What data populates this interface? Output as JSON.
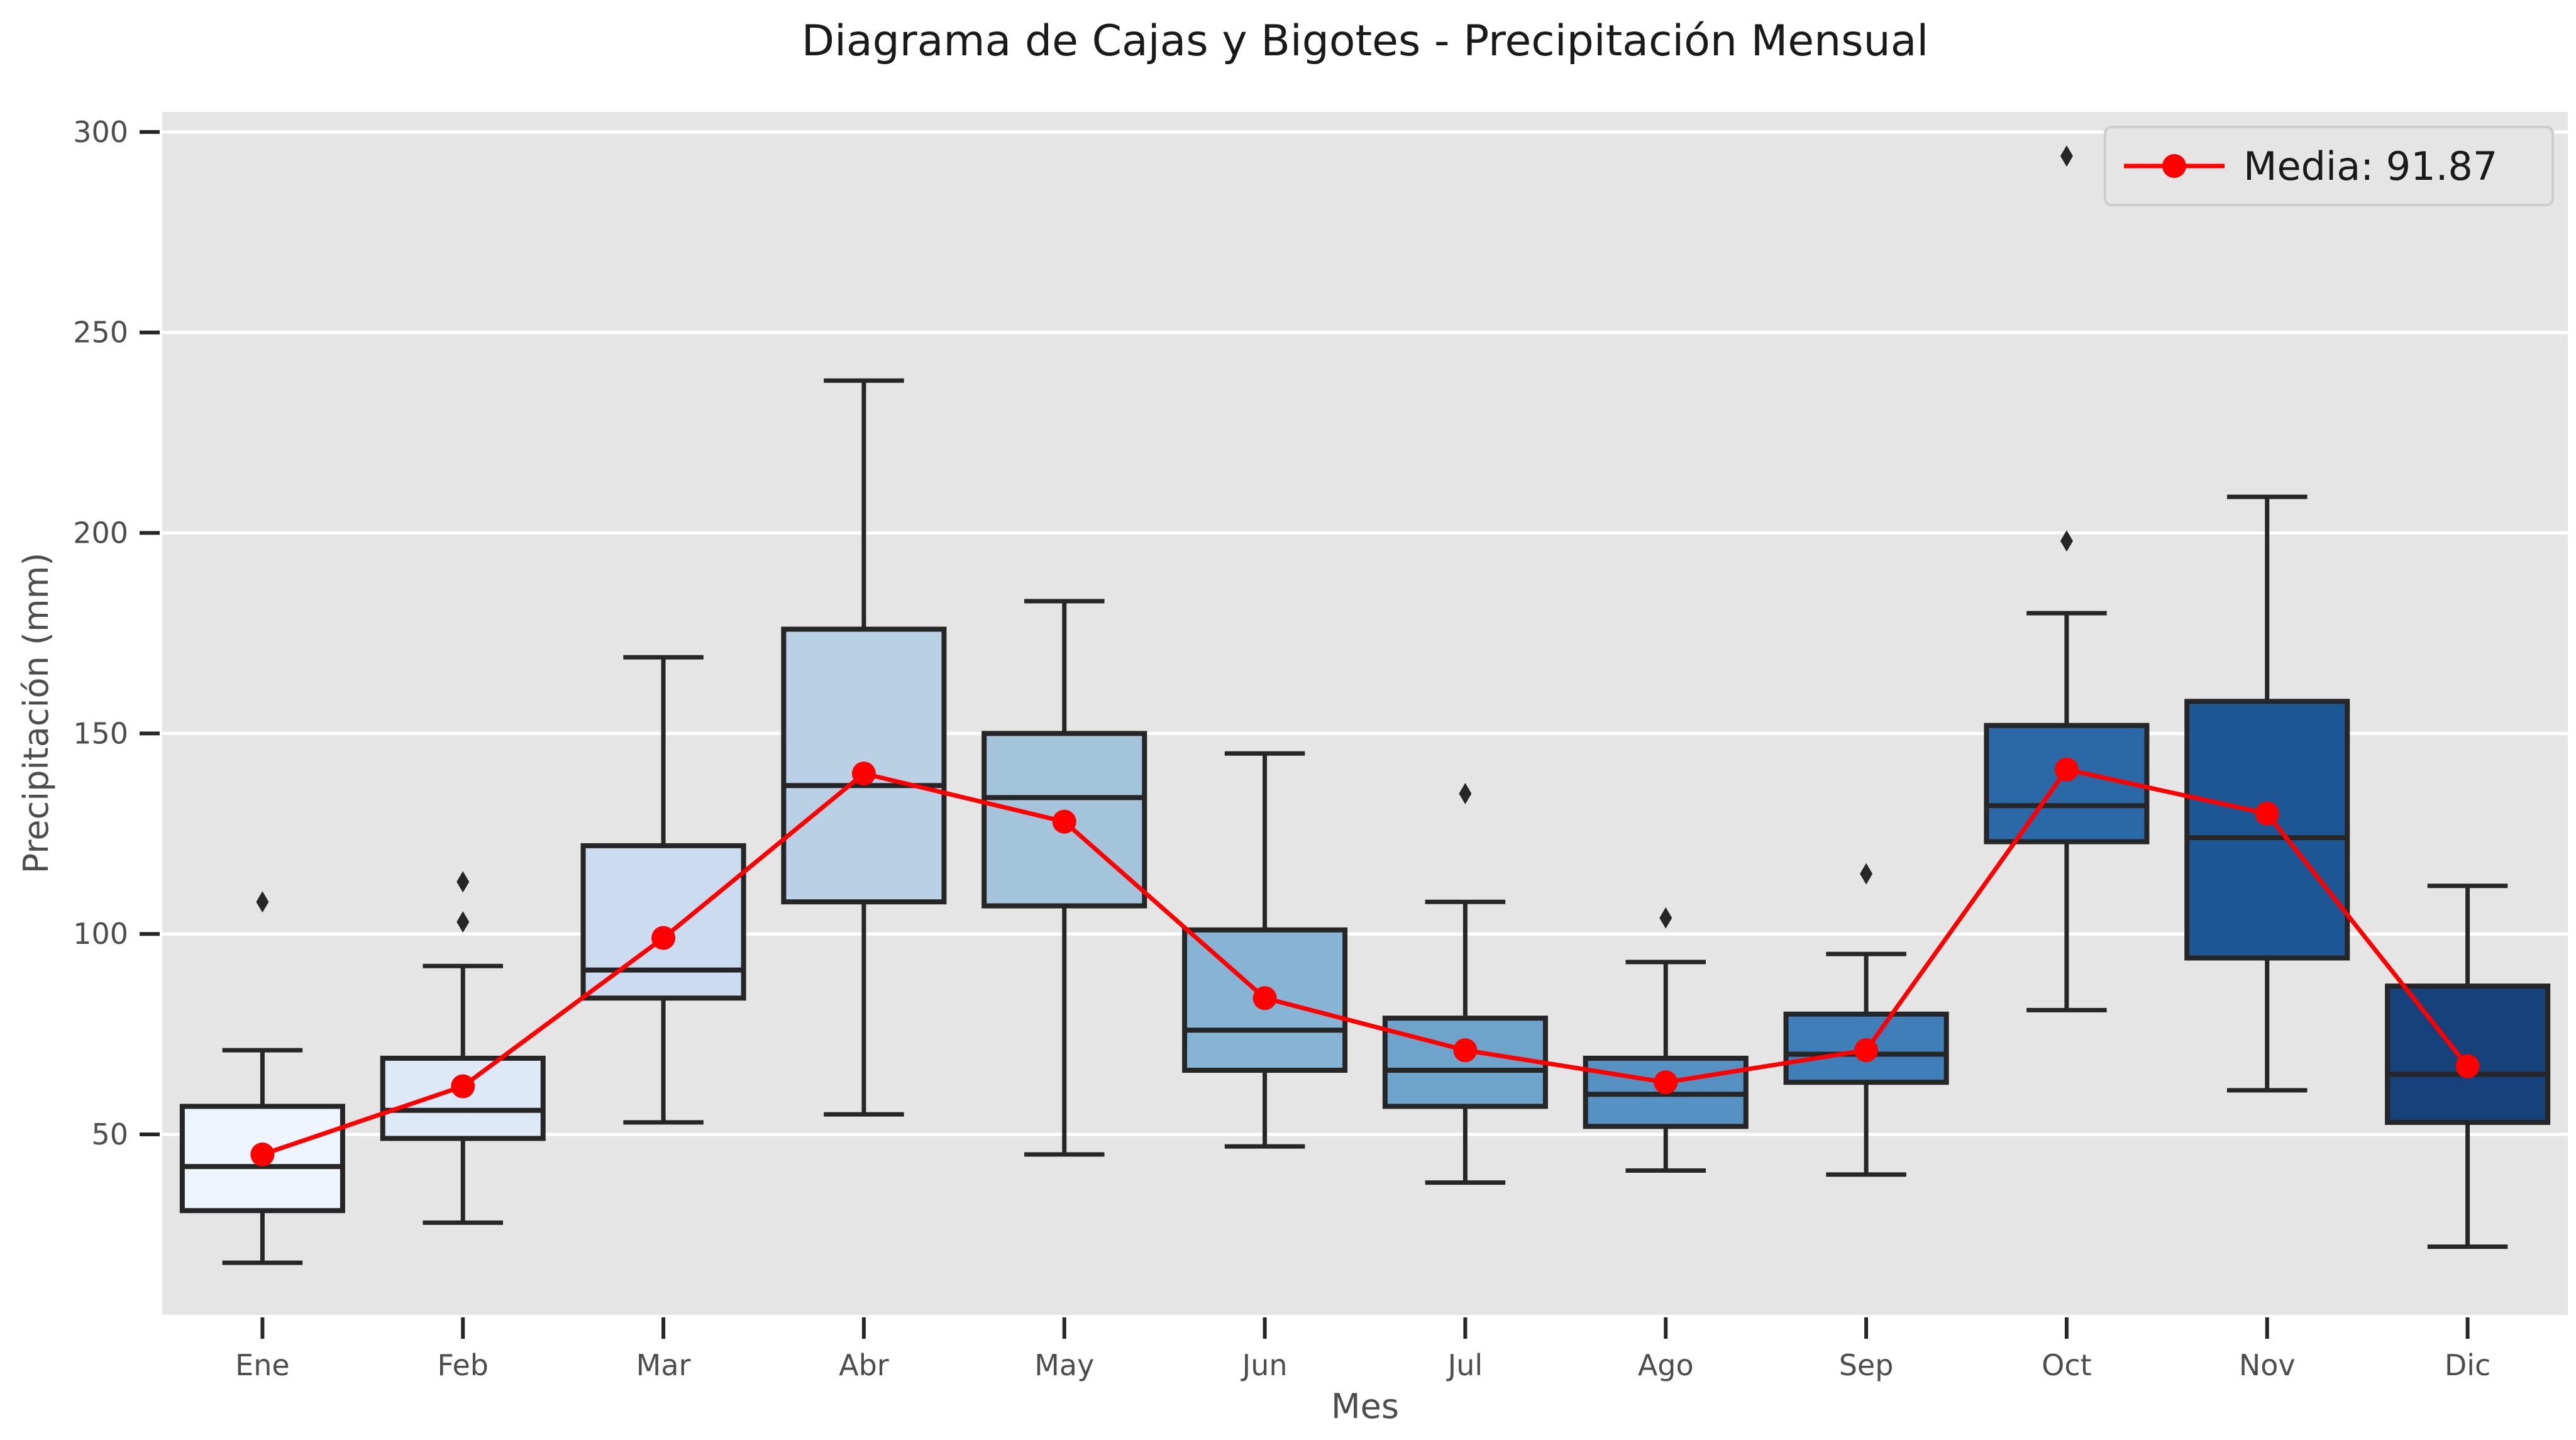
{
  "chart_data": {
    "type": "box",
    "title": "Diagrama de Cajas y Bigotes - Precipitación Mensual",
    "xlabel": "Mes",
    "ylabel": "Precipitación (mm)",
    "ylim": [
      5,
      305
    ],
    "yticks": [
      50,
      100,
      150,
      200,
      250,
      300
    ],
    "grid": "horizontal",
    "legend_position": "top-right",
    "legend_label": "Media: 91.87",
    "mean_color": "#ff0000",
    "categories": [
      "Ene",
      "Feb",
      "Mar",
      "Abr",
      "May",
      "Jun",
      "Jul",
      "Ago",
      "Sep",
      "Oct",
      "Nov",
      "Dic"
    ],
    "boxes": [
      {
        "whisker_low": 18,
        "q1": 31,
        "median": 42,
        "q3": 57,
        "whisker_high": 71,
        "outliers": [
          108
        ],
        "mean": 45,
        "color": "#eef4fb"
      },
      {
        "whisker_low": 28,
        "q1": 49,
        "median": 56,
        "q3": 69,
        "whisker_high": 92,
        "outliers": [
          103,
          113
        ],
        "mean": 62,
        "color": "#dde9f6"
      },
      {
        "whisker_low": 53,
        "q1": 84,
        "median": 91,
        "q3": 122,
        "whisker_high": 169,
        "outliers": [],
        "mean": 99,
        "color": "#cbdcf0"
      },
      {
        "whisker_low": 55,
        "q1": 108,
        "median": 137,
        "q3": 176,
        "whisker_high": 238,
        "outliers": [],
        "mean": 140,
        "color": "#b9d0e5"
      },
      {
        "whisker_low": 45,
        "q1": 107,
        "median": 134,
        "q3": 150,
        "whisker_high": 183,
        "outliers": [],
        "mean": 128,
        "color": "#a4c4dc"
      },
      {
        "whisker_low": 47,
        "q1": 66,
        "median": 76,
        "q3": 101,
        "whisker_high": 145,
        "outliers": [],
        "mean": 84,
        "color": "#87b4d4"
      },
      {
        "whisker_low": 38,
        "q1": 57,
        "median": 66,
        "q3": 79,
        "whisker_high": 108,
        "outliers": [
          135
        ],
        "mean": 71,
        "color": "#6ea4cc"
      },
      {
        "whisker_low": 41,
        "q1": 52,
        "median": 60,
        "q3": 69,
        "whisker_high": 93,
        "outliers": [
          104
        ],
        "mean": 63,
        "color": "#5691c3"
      },
      {
        "whisker_low": 40,
        "q1": 63,
        "median": 70,
        "q3": 80,
        "whisker_high": 95,
        "outliers": [
          115
        ],
        "mean": 71,
        "color": "#3f7eb8"
      },
      {
        "whisker_low": 81,
        "q1": 123,
        "median": 132,
        "q3": 152,
        "whisker_high": 180,
        "outliers": [
          198,
          294
        ],
        "mean": 141,
        "color": "#2a68a8"
      },
      {
        "whisker_low": 61,
        "q1": 94,
        "median": 124,
        "q3": 158,
        "whisker_high": 209,
        "outliers": [],
        "mean": 130,
        "color": "#1d5694"
      },
      {
        "whisker_low": 22,
        "q1": 53,
        "median": 65,
        "q3": 87,
        "whisker_high": 112,
        "outliers": [],
        "mean": 67,
        "color": "#16417a"
      }
    ]
  }
}
